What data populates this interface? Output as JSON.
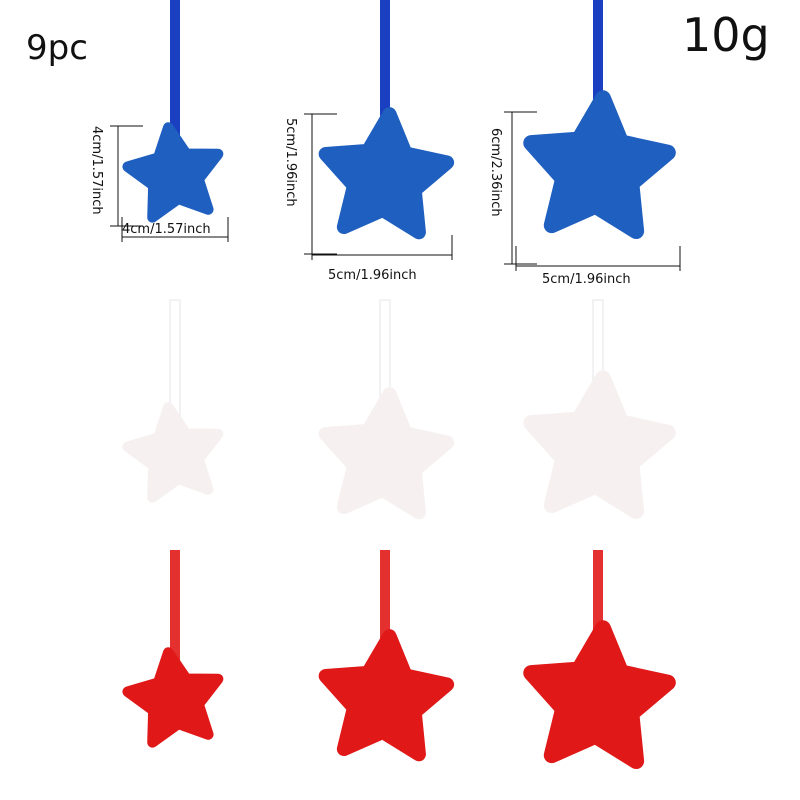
{
  "count_label": "9pc",
  "weight_label": "10g",
  "colors": {
    "blue": "#1f5fc0",
    "white": "#f6f1f0",
    "red": "#e01818"
  },
  "dimensions": {
    "small": {
      "height": "4cm/1.57inch",
      "width": "4cm/1.57inch"
    },
    "medium": {
      "height": "5cm/1.96inch",
      "width": "5cm/1.96inch"
    },
    "large": {
      "height": "6cm/2.36inch",
      "width": "5cm/1.96inch"
    }
  }
}
